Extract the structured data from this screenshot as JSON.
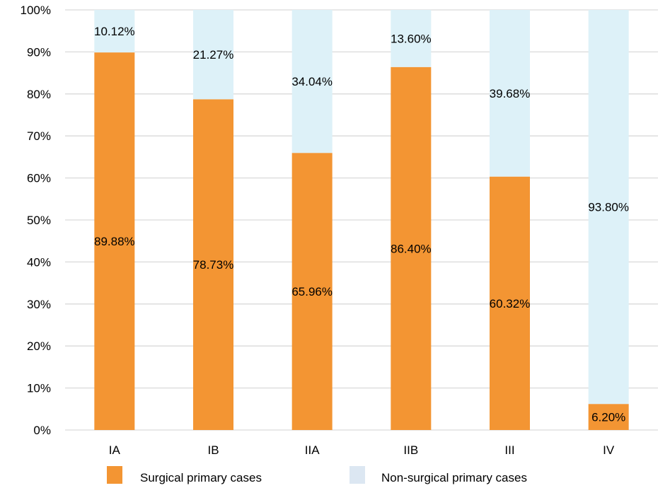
{
  "chart_data": {
    "type": "bar",
    "stacked": true,
    "normalized_percent": true,
    "categories": [
      "IA",
      "IB",
      "IIA",
      "IIB",
      "III",
      "IV"
    ],
    "series": [
      {
        "name": "Surgical primary cases",
        "values": [
          89.88,
          78.73,
          65.96,
          86.4,
          60.32,
          6.2
        ],
        "labels": [
          "89.88%",
          "78.73%",
          "65.96%",
          "86.40%",
          "60.32%",
          "6.20%"
        ],
        "color": "#F39533"
      },
      {
        "name": "Non-surgical primary cases",
        "values": [
          10.12,
          21.27,
          34.04,
          13.6,
          39.68,
          93.8
        ],
        "labels": [
          "10.12%",
          "21.27%",
          "34.04%",
          "13.60%",
          "39.68%",
          "93.80%"
        ],
        "color": "#DDF1F8"
      }
    ],
    "y_ticks": [
      "0%",
      "10%",
      "20%",
      "30%",
      "40%",
      "50%",
      "60%",
      "70%",
      "80%",
      "90%",
      "100%"
    ],
    "ylim": [
      0,
      100
    ],
    "grid": true,
    "legend_position": "bottom",
    "legend_swatch_colors": [
      "#F39533",
      "#DCE7F2"
    ],
    "gridline_color": "#D9D9D9"
  }
}
